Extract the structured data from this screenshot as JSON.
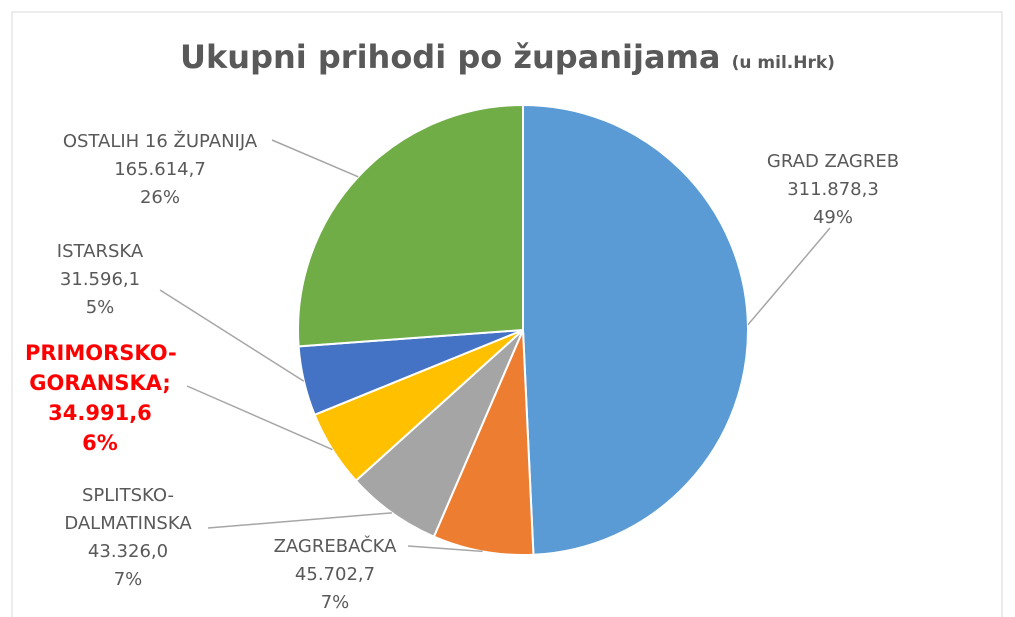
{
  "chart_data": {
    "type": "pie",
    "title": "Ukupni prihodi po županijama",
    "subtitle": "(u mil.Hrk)",
    "categories": [
      "GRAD ZAGREB",
      "ZAGREBAČKA",
      "SPLITSKO-DALMATINSKA",
      "PRIMORSKO-GORANSKA;",
      "ISTARSKA",
      "OSTALIH 16 ŽUPANIJA"
    ],
    "values": [
      311878.3,
      45702.7,
      43326.0,
      34991.6,
      31596.1,
      165614.7
    ],
    "value_labels": [
      "311.878,3",
      "45.702,7",
      "43.326,0",
      "34.991,6",
      "31.596,1",
      "165.614,7"
    ],
    "percents": [
      49,
      7,
      7,
      6,
      5,
      26
    ],
    "percent_labels": [
      "49%",
      "7%",
      "7%",
      "6%",
      "5%",
      "26%"
    ],
    "colors": [
      "#5b9bd5",
      "#ed7d31",
      "#a5a5a5",
      "#ffc000",
      "#4472c4",
      "#70ad47"
    ],
    "highlight_index": 3,
    "highlight_color": "#ff0000"
  }
}
